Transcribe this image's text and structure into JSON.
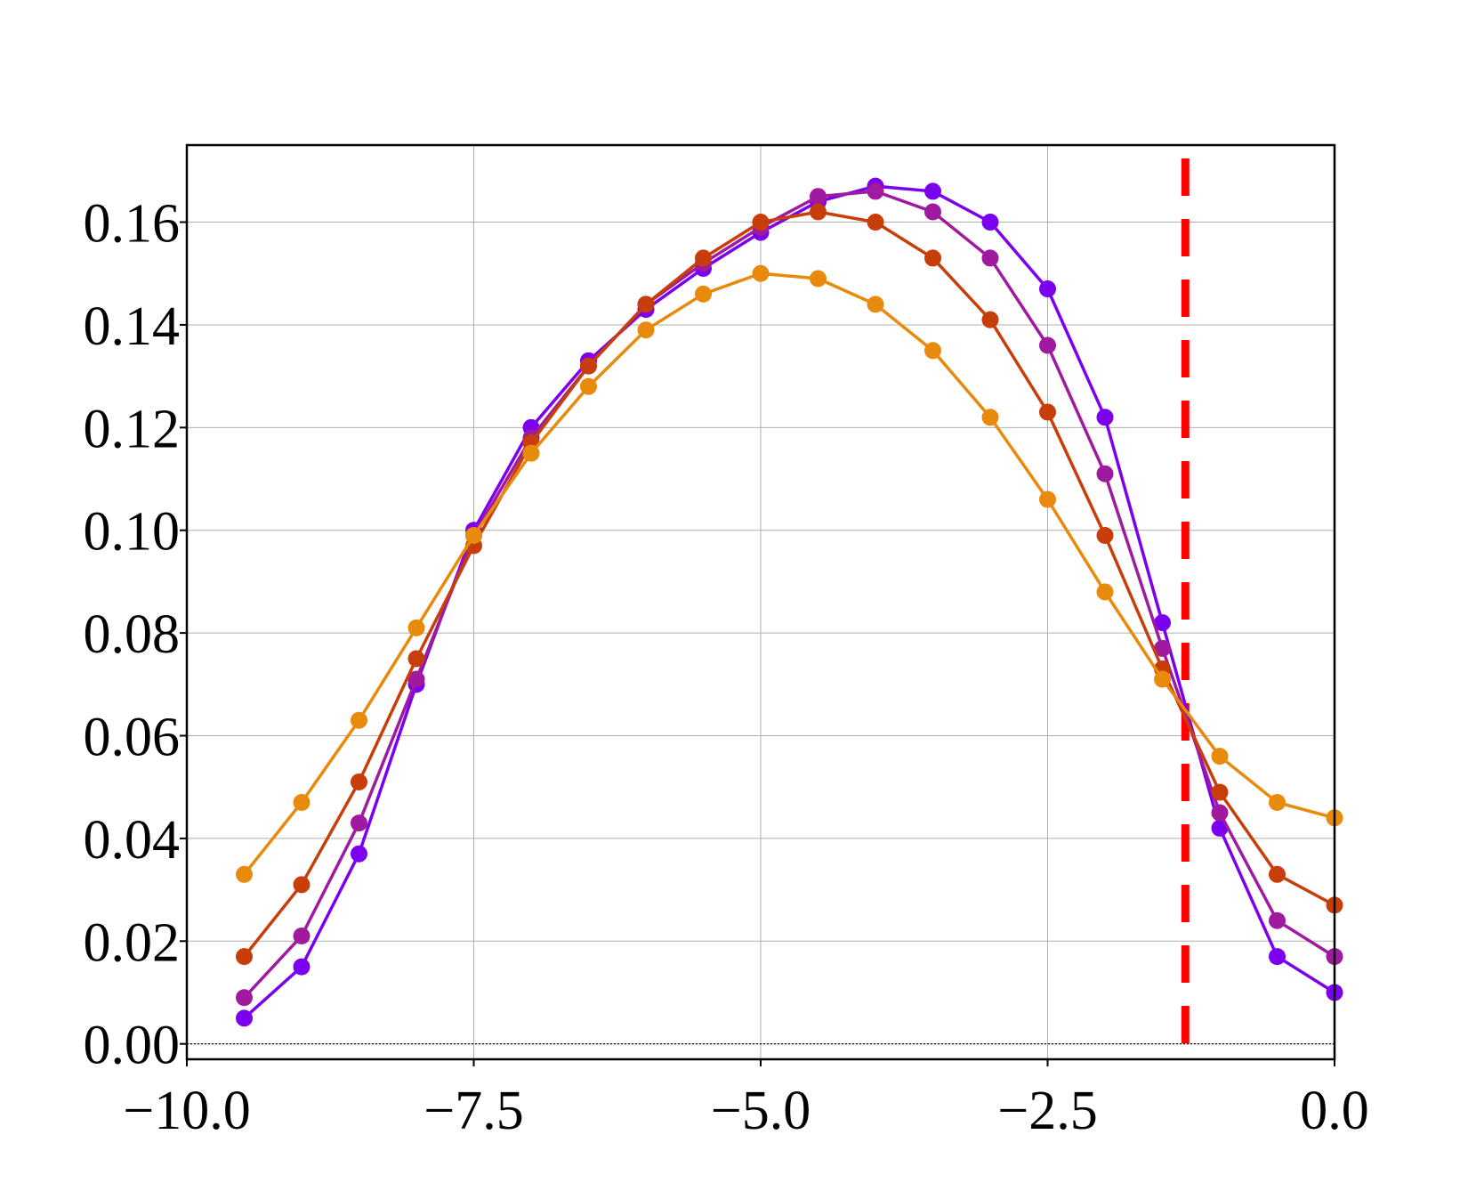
{
  "chart_data": {
    "type": "line",
    "title": "",
    "xlabel": "",
    "ylabel": "",
    "xlim": [
      -10.0,
      0.0
    ],
    "ylim": [
      -0.003,
      0.175
    ],
    "xticks": [
      -10.0,
      -7.5,
      -5.0,
      -2.5,
      0.0
    ],
    "xtick_labels": [
      "−10.0",
      "−7.5",
      "−5.0",
      "−2.5",
      "0.0"
    ],
    "yticks": [
      0.0,
      0.02,
      0.04,
      0.06,
      0.08,
      0.1,
      0.12,
      0.14,
      0.16
    ],
    "ytick_labels": [
      "0.00",
      "0.02",
      "0.04",
      "0.06",
      "0.08",
      "0.10",
      "0.12",
      "0.14",
      "0.16"
    ],
    "grid": true,
    "legend": "none",
    "x": [
      -9.5,
      -9.0,
      -8.5,
      -8.0,
      -7.5,
      -7.0,
      -6.5,
      -6.0,
      -5.5,
      -5.0,
      -4.5,
      -4.0,
      -3.5,
      -3.0,
      -2.5,
      -2.0,
      -1.5,
      -1.0,
      -0.5,
      0.0
    ],
    "series": [
      {
        "color": "#7b00ee",
        "values": [
          0.005,
          0.015,
          0.037,
          0.07,
          0.1,
          0.12,
          0.133,
          0.143,
          0.151,
          0.158,
          0.164,
          0.167,
          0.166,
          0.16,
          0.147,
          0.122,
          0.082,
          0.042,
          0.017,
          0.01
        ]
      },
      {
        "color": "#a01aa0",
        "values": [
          0.009,
          0.021,
          0.043,
          0.071,
          0.099,
          0.118,
          0.132,
          0.144,
          0.152,
          0.159,
          0.165,
          0.166,
          0.162,
          0.153,
          0.136,
          0.111,
          0.077,
          0.045,
          0.024,
          0.017
        ]
      },
      {
        "color": "#c83e0a",
        "values": [
          0.017,
          0.031,
          0.051,
          0.075,
          0.097,
          0.117,
          0.132,
          0.144,
          0.153,
          0.16,
          0.162,
          0.16,
          0.153,
          0.141,
          0.123,
          0.099,
          0.073,
          0.049,
          0.033,
          0.027
        ]
      },
      {
        "color": "#e88a0c",
        "values": [
          0.033,
          0.047,
          0.063,
          0.081,
          0.099,
          0.115,
          0.128,
          0.139,
          0.146,
          0.15,
          0.149,
          0.144,
          0.135,
          0.122,
          0.106,
          0.088,
          0.071,
          0.056,
          0.047,
          0.044
        ]
      }
    ],
    "hline": {
      "y": 0.0,
      "color": "#000000",
      "style": "dotted"
    },
    "vline": {
      "x": -1.3,
      "color": "#ff0000",
      "style": "dashed"
    }
  }
}
